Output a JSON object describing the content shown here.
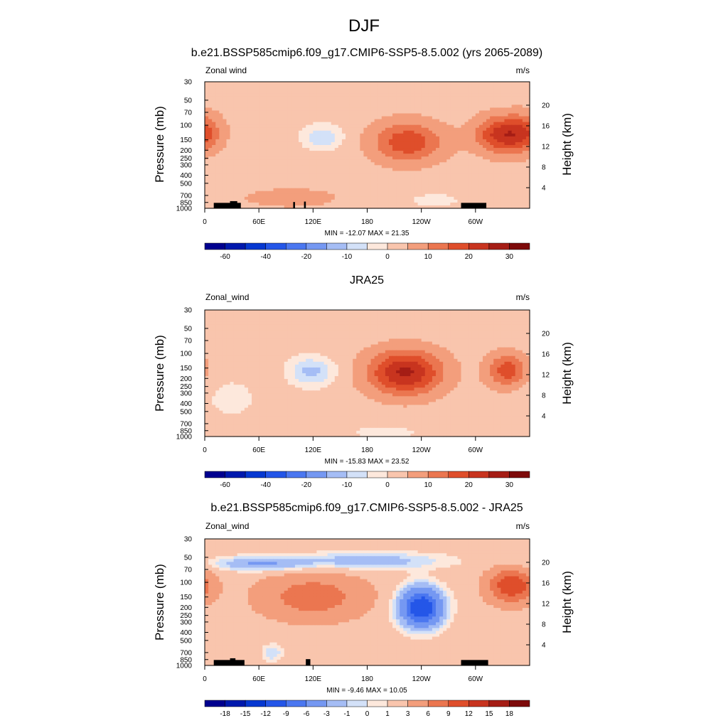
{
  "figure": {
    "title": "DJF"
  },
  "colors": {
    "div_palette": [
      "#00008f",
      "#0019ad",
      "#0638d1",
      "#2456e8",
      "#4b77f0",
      "#7598f2",
      "#a5bdf5",
      "#d3e1f8",
      "#fde8dc",
      "#f9c5ad",
      "#f39e7c",
      "#eb7650",
      "#df4e2b",
      "#c8341f",
      "#a51d15",
      "#7d0a0a"
    ],
    "land": "#000000"
  },
  "chart_data": [
    {
      "type": "heatmap",
      "title": "b.e21.BSSP585cmip6.f09_g17.CMIP6-SSP5-8.5.002 (yrs 2065-2089)",
      "left_label": "Zonal wind",
      "right_label": "m/s",
      "ylabel": "Pressure (mb)",
      "ylabel_right": "Height (km)",
      "x_ticks": [
        "0",
        "60E",
        "120E",
        "180",
        "120W",
        "60W"
      ],
      "x_tick_lon": [
        0,
        60,
        120,
        180,
        240,
        300
      ],
      "xlim": [
        0,
        360
      ],
      "y_ticks": [
        "30",
        "50",
        "70",
        "100",
        "150",
        "200",
        "250",
        "300",
        "400",
        "500",
        "700",
        "850",
        "1000"
      ],
      "y_tick_p": [
        30,
        50,
        70,
        100,
        150,
        200,
        250,
        300,
        400,
        500,
        700,
        850,
        1000
      ],
      "ylim": [
        1000,
        30
      ],
      "y_scale": "log",
      "height_ticks": [
        "4",
        "8",
        "12",
        "16",
        "20"
      ],
      "height_tick_km": [
        4,
        8,
        12,
        16,
        20
      ],
      "minmax_text": "MIN = -12.07  MAX =  21.35",
      "levels": [
        -70,
        -60,
        -50,
        -40,
        -30,
        -20,
        -15,
        -10,
        -5,
        0,
        5,
        10,
        15,
        20,
        25,
        30,
        35
      ],
      "colorbar_labels": [
        "-60",
        "-40",
        "-20",
        "-10",
        "0",
        "10",
        "20",
        "30"
      ],
      "colorbar_label_index": [
        1,
        3,
        5,
        7,
        9,
        11,
        13,
        15
      ],
      "min": -12.07,
      "max": 21.35,
      "features": [
        {
          "lon": 130,
          "p": 140,
          "amp": -12,
          "slon": 22,
          "sp": 0.35
        },
        {
          "lon": 225,
          "p": 160,
          "amp": 16,
          "slon": 38,
          "sp": 0.55
        },
        {
          "lon": 332,
          "p": 130,
          "amp": 21,
          "slon": 30,
          "sp": 0.5
        },
        {
          "lon": 0,
          "p": 120,
          "amp": 8,
          "slon": 20,
          "sp": 0.5
        },
        {
          "lon": 95,
          "p": 750,
          "amp": 4,
          "slon": 60,
          "sp": 0.3
        },
        {
          "lon": 255,
          "p": 800,
          "amp": -4,
          "slon": 45,
          "sp": 0.3
        }
      ],
      "base": 3,
      "topo": [
        [
          10,
          40,
          860
        ],
        [
          28,
          36,
          820
        ],
        [
          98,
          100,
          840
        ],
        [
          110,
          112,
          830
        ],
        [
          284,
          312,
          860
        ]
      ]
    },
    {
      "type": "heatmap",
      "title": "JRA25",
      "left_label": "Zonal_wind",
      "right_label": "m/s",
      "ylabel": "Pressure (mb)",
      "ylabel_right": "Height (km)",
      "x_ticks": [
        "0",
        "60E",
        "120E",
        "180",
        "120W",
        "60W"
      ],
      "x_tick_lon": [
        0,
        60,
        120,
        180,
        240,
        300
      ],
      "xlim": [
        0,
        360
      ],
      "y_ticks": [
        "30",
        "50",
        "70",
        "100",
        "150",
        "200",
        "250",
        "300",
        "400",
        "500",
        "700",
        "850",
        "1000"
      ],
      "y_tick_p": [
        30,
        50,
        70,
        100,
        150,
        200,
        250,
        300,
        400,
        500,
        700,
        850,
        1000
      ],
      "ylim": [
        1000,
        30
      ],
      "y_scale": "log",
      "height_ticks": [
        "4",
        "8",
        "12",
        "16",
        "20"
      ],
      "height_tick_km": [
        4,
        8,
        12,
        16,
        20
      ],
      "minmax_text": "MIN = -15.83  MAX =  23.52",
      "levels": [
        -70,
        -60,
        -50,
        -40,
        -30,
        -20,
        -15,
        -10,
        -5,
        0,
        5,
        10,
        15,
        20,
        25,
        30,
        35
      ],
      "colorbar_labels": [
        "-60",
        "-40",
        "-20",
        "-10",
        "0",
        "10",
        "20",
        "30"
      ],
      "colorbar_label_index": [
        1,
        3,
        5,
        7,
        9,
        11,
        13,
        15
      ],
      "min": -15.83,
      "max": 23.52,
      "features": [
        {
          "lon": 118,
          "p": 165,
          "amp": -15,
          "slon": 25,
          "sp": 0.4
        },
        {
          "lon": 222,
          "p": 170,
          "amp": 23,
          "slon": 40,
          "sp": 0.6
        },
        {
          "lon": 335,
          "p": 160,
          "amp": 15,
          "slon": 22,
          "sp": 0.45
        },
        {
          "lon": 30,
          "p": 350,
          "amp": -5,
          "slon": 30,
          "sp": 0.6
        },
        {
          "lon": 200,
          "p": 900,
          "amp": -4,
          "slon": 60,
          "sp": 0.3
        }
      ],
      "base": 3,
      "topo": []
    },
    {
      "type": "heatmap",
      "title": "b.e21.BSSP585cmip6.f09_g17.CMIP6-SSP5-8.5.002 - JRA25",
      "left_label": "Zonal_wind",
      "right_label": "m/s",
      "ylabel": "Pressure (mb)",
      "ylabel_right": "Height (km)",
      "x_ticks": [
        "0",
        "60E",
        "120E",
        "180",
        "120W",
        "60W"
      ],
      "x_tick_lon": [
        0,
        60,
        120,
        180,
        240,
        300
      ],
      "xlim": [
        0,
        360
      ],
      "y_ticks": [
        "30",
        "50",
        "70",
        "100",
        "150",
        "200",
        "250",
        "300",
        "400",
        "500",
        "700",
        "850",
        "1000"
      ],
      "y_tick_p": [
        30,
        50,
        70,
        100,
        150,
        200,
        250,
        300,
        400,
        500,
        700,
        850,
        1000
      ],
      "ylim": [
        1000,
        30
      ],
      "y_scale": "log",
      "height_ticks": [
        "4",
        "8",
        "12",
        "16",
        "20"
      ],
      "height_tick_km": [
        4,
        8,
        12,
        16,
        20
      ],
      "minmax_text": "MIN = -9.46  MAX =  10.05",
      "levels": [
        -21,
        -18,
        -15,
        -12,
        -9,
        -6,
        -3,
        -1,
        0,
        1,
        3,
        6,
        9,
        12,
        15,
        18,
        21
      ],
      "colorbar_labels": [
        "-18",
        "-15",
        "-12",
        "-9",
        "-6",
        "-3",
        "-1",
        "0",
        "1",
        "3",
        "6",
        "9",
        "12",
        "15",
        "18"
      ],
      "colorbar_label_index": [
        1,
        2,
        3,
        4,
        5,
        6,
        7,
        8,
        9,
        10,
        11,
        12,
        13,
        14,
        15
      ],
      "min": -9.46,
      "max": 10.05,
      "features": [
        {
          "lon": 240,
          "p": 200,
          "amp": -14,
          "slon": 24,
          "sp": 0.55
        },
        {
          "lon": 120,
          "p": 150,
          "amp": 6,
          "slon": 55,
          "sp": 0.6
        },
        {
          "lon": 340,
          "p": 110,
          "amp": 10,
          "slon": 25,
          "sp": 0.45
        },
        {
          "lon": 180,
          "p": 55,
          "amp": -4,
          "slon": 90,
          "sp": 0.25
        },
        {
          "lon": 60,
          "p": 60,
          "amp": -5,
          "slon": 50,
          "sp": 0.2
        },
        {
          "lon": 75,
          "p": 700,
          "amp": -3,
          "slon": 12,
          "sp": 0.25
        }
      ],
      "base": 2,
      "topo": [
        [
          10,
          44,
          860
        ],
        [
          28,
          34,
          820
        ],
        [
          112,
          117,
          840
        ],
        [
          284,
          314,
          860
        ]
      ]
    }
  ]
}
